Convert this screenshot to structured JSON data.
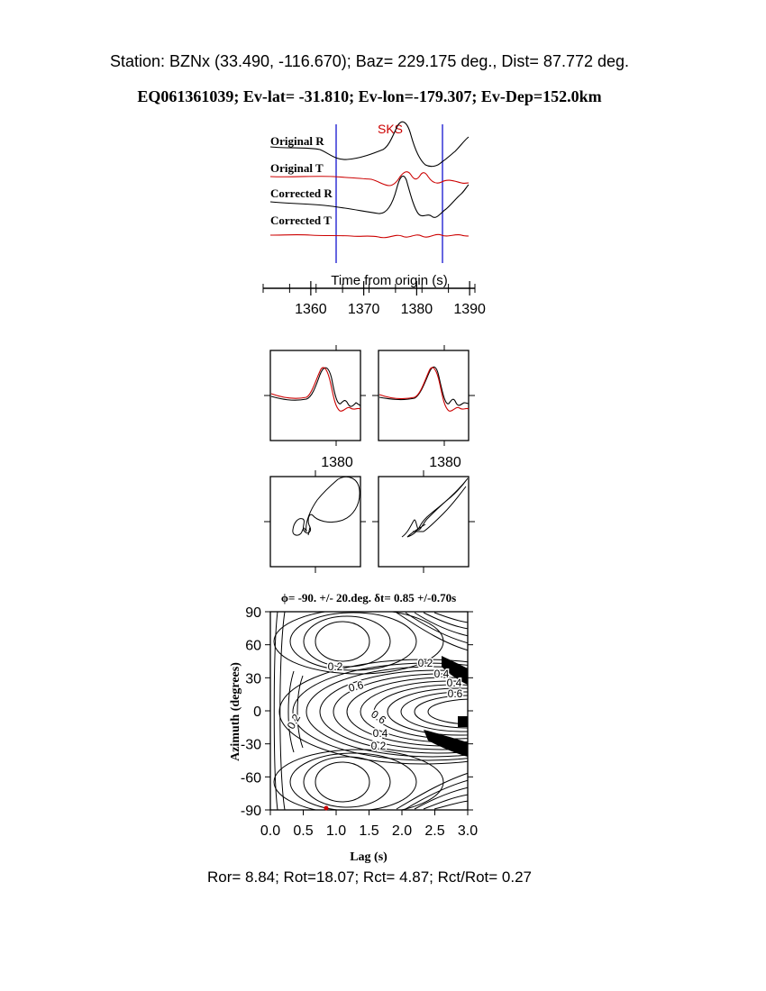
{
  "header": {
    "station_line": "Station: BZNx (33.490, -116.670); Baz=  229.175 deg., Dist=   87.772 deg.",
    "event_line": "EQ061361039; Ev-lat= -31.810; Ev-lon=-179.307; Ev-Dep=152.0km"
  },
  "footer": {
    "stats_line": "Ror= 8.84; Rot=18.07; Rct= 4.87; Rct/Rot= 0.27"
  },
  "colors": {
    "trace_black": "#000000",
    "trace_red": "#cc0000",
    "marker_blue": "#0000cc"
  },
  "chart_data": [
    {
      "type": "line",
      "phase_label": "SKS",
      "traces": [
        {
          "name": "Original R",
          "color": "#000000"
        },
        {
          "name": "Original T",
          "color": "#cc0000"
        },
        {
          "name": "Corrected R",
          "color": "#000000"
        },
        {
          "name": "Corrected T",
          "color": "#cc0000"
        }
      ],
      "xlabel": "Time from origin (s)",
      "xticks": [
        1360,
        1370,
        1380,
        1390
      ],
      "xlim": [
        1351,
        1391
      ],
      "window_markers": [
        1364.8,
        1385.5
      ]
    },
    {
      "type": "line",
      "panels": 2,
      "xticks": [
        1380
      ],
      "xlim": [
        1364.8,
        1385.5
      ]
    },
    {
      "type": "scatter",
      "description_label": "",
      "panels": 2
    },
    {
      "type": "heatmap",
      "title": "ϕ= -90. +/- 20.deg. δt= 0.85 +/-0.70s",
      "xlabel": "Lag (s)",
      "ylabel": "Azimuth (degrees)",
      "xticks": [
        "0.0",
        "0.5",
        "1.0",
        "1.5",
        "2.0",
        "2.5",
        "3.0"
      ],
      "yticks": [
        "90",
        "60",
        "30",
        "0",
        "-30",
        "-60",
        "-90"
      ],
      "xlim": [
        0,
        3
      ],
      "ylim": [
        -90,
        90
      ],
      "contour_labels": [
        "0.2",
        "0.2",
        "0.4",
        "0.6",
        "0.4",
        "0.6",
        "0.4",
        "0.2",
        "0.2",
        "0.6"
      ],
      "best_fit": {
        "lag": 0.85,
        "azimuth": -90
      }
    }
  ]
}
